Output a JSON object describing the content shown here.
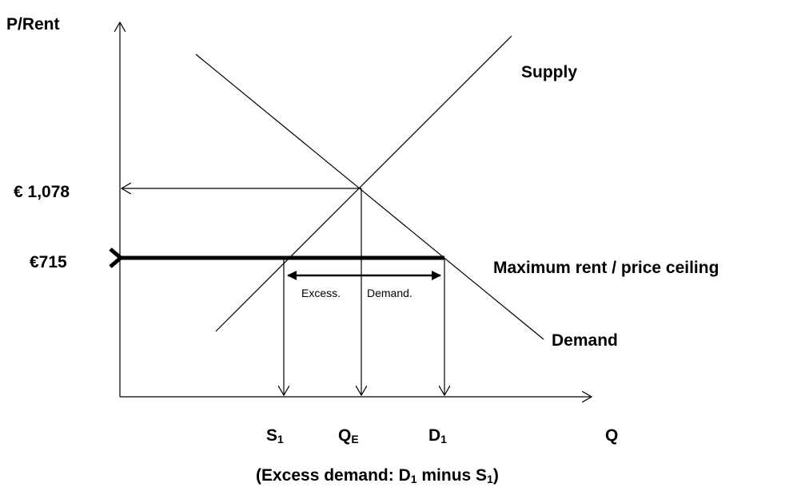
{
  "axes": {
    "y_label": "P/Rent",
    "x_label": "Q"
  },
  "prices": {
    "equilibrium": "€ 1,078",
    "ceiling": "€715"
  },
  "curves": {
    "supply": "Supply",
    "demand": "Demand",
    "ceiling": "Maximum rent / price ceiling"
  },
  "quantities": [
    {
      "letter": "S",
      "subscript": "1"
    },
    {
      "letter": "Q",
      "subscript": "E"
    },
    {
      "letter": "D",
      "subscript": "1"
    }
  ],
  "gap_labels": [
    "Excess.",
    "Demand."
  ],
  "caption": [
    "(Excess demand: D",
    "1",
    " minus S",
    "1",
    ")"
  ]
}
